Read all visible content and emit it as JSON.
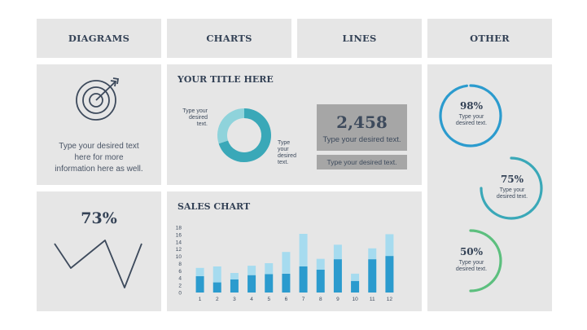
{
  "header_tabs": [
    "DIAGRAMS",
    "CHARTS",
    "LINES",
    "OTHER"
  ],
  "diagrams": {
    "icon": "target-dart-icon",
    "text": [
      "Type your desired text",
      "here for more",
      "information here as well."
    ]
  },
  "title_panel": {
    "title": "YOUR TITLE HERE",
    "donut_label_left": [
      "Type your",
      "desired",
      "text."
    ],
    "donut_label_right": [
      "Type",
      "your",
      "desired",
      "text."
    ],
    "donut_data": [
      {
        "value": 70,
        "color": "#3aa8b8"
      },
      {
        "value": 30,
        "color": "#8fd3db"
      }
    ],
    "stat_value": "2,458",
    "stat_text": "Type your desired text.",
    "stat_subtext": "Type your desired text."
  },
  "line_panel": {
    "value": "73%",
    "icon": "zigzag-line-icon"
  },
  "sales_chart": {
    "title": "SALES CHART",
    "chart_data": {
      "type": "bar",
      "stacked": true,
      "categories": [
        "1",
        "2",
        "3",
        "4",
        "5",
        "6",
        "7",
        "8",
        "9",
        "10",
        "11",
        "12"
      ],
      "yticks": [
        "0",
        "2",
        "4",
        "6",
        "8",
        "10",
        "12",
        "14",
        "16",
        "18"
      ],
      "ylim": [
        0,
        18
      ],
      "series": [
        {
          "values": [
            4.5,
            2.8,
            3.6,
            4.8,
            5.1,
            5.2,
            7.2,
            6.3,
            9.2,
            3.2,
            9.2,
            10.1
          ],
          "color": "#2b9bce"
        },
        {
          "values": [
            2.3,
            4.4,
            1.8,
            2.6,
            3.0,
            6.0,
            9.0,
            3.0,
            4.0,
            2.0,
            3.0,
            6.0
          ],
          "color": "#a6dbef"
        }
      ]
    }
  },
  "other": {
    "gauges": [
      {
        "value": "98%",
        "text": [
          "Type your",
          "desired text."
        ],
        "color": "#2b9bce",
        "fraction": 0.98
      },
      {
        "value": "75%",
        "text": [
          "Type your",
          "desired text."
        ],
        "color": "#3aa8b8",
        "fraction": 0.75
      },
      {
        "value": "50%",
        "text": [
          "Type your",
          "desired text."
        ],
        "color": "#5cbf7e",
        "fraction": 0.5
      }
    ]
  }
}
